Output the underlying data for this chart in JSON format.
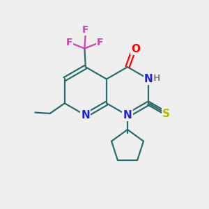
{
  "bg_color": "#efefef",
  "bond_color": "#2a6b6b",
  "bond_width": 1.6,
  "atom_colors": {
    "N": "#2020cc",
    "O": "#ff0000",
    "S": "#b8b800",
    "F": "#cc44aa",
    "C": "#2a6b6b",
    "H": "#888888"
  },
  "font_size": 11,
  "fig_size": [
    3.0,
    3.0
  ],
  "dpi": 100
}
